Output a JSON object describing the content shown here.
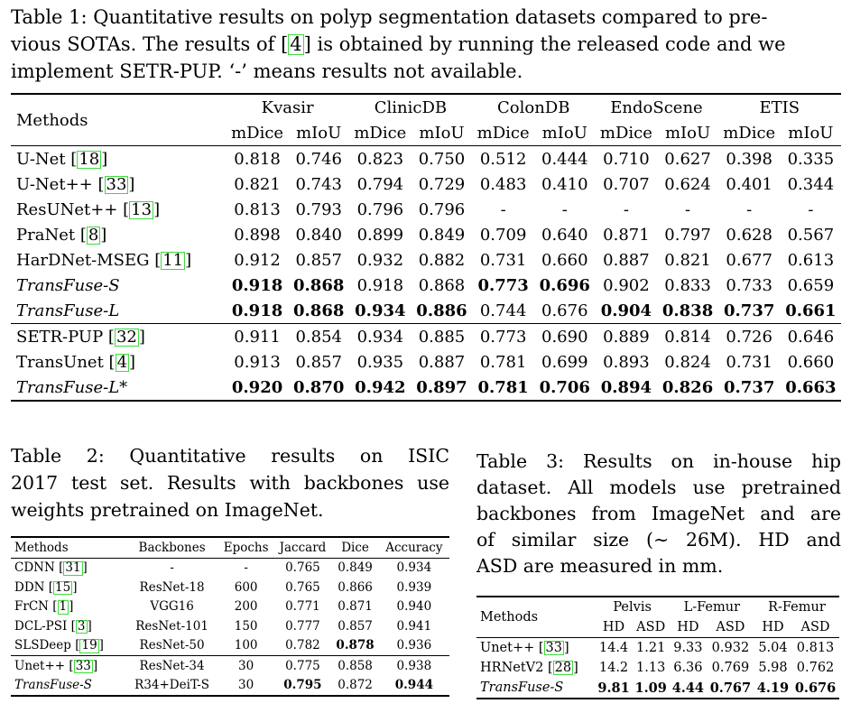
{
  "table1": {
    "caption": "Table 1:  Quantitative results on polyp segmentation datasets compared to previous SOTAs. The results of [4] is obtained by running the released code and we implement SETR-PUP. ‘-’ means results not available.",
    "caption_parts": [
      "Table 1:  Quantitative results on polyp segmentation datasets compared to pre-",
      "vious SOTAs. The results of ",
      "4",
      " is obtained by running the released code and we",
      "implement SETR-PUP. ‘-’ means results not available."
    ],
    "methods_header": "Methods",
    "datasets": [
      "Kvasir",
      "ClinicDB",
      "ColonDB",
      "EndoScene",
      "ETIS"
    ],
    "metric_a": "mDice",
    "metric_b": "mIoU",
    "rows": [
      {
        "name": "U-Net ",
        "ref": "18",
        "italic": false,
        "values": [
          "0.818",
          "0.746",
          "0.823",
          "0.750",
          "0.512",
          "0.444",
          "0.710",
          "0.627",
          "0.398",
          "0.335"
        ],
        "bold": []
      },
      {
        "name": "U-Net++ ",
        "ref": "33",
        "italic": false,
        "values": [
          "0.821",
          "0.743",
          "0.794",
          "0.729",
          "0.483",
          "0.410",
          "0.707",
          "0.624",
          "0.401",
          "0.344"
        ],
        "bold": []
      },
      {
        "name": "ResUNet++ ",
        "ref": "13",
        "italic": false,
        "values": [
          "0.813",
          "0.793",
          "0.796",
          "0.796",
          "-",
          "-",
          "-",
          "-",
          "-",
          "-"
        ],
        "bold": []
      },
      {
        "name": "PraNet ",
        "ref": "8",
        "italic": false,
        "values": [
          "0.898",
          "0.840",
          "0.899",
          "0.849",
          "0.709",
          "0.640",
          "0.871",
          "0.797",
          "0.628",
          "0.567"
        ],
        "bold": []
      },
      {
        "name": "HarDNet-MSEG ",
        "ref": "11",
        "italic": false,
        "values": [
          "0.912",
          "0.857",
          "0.932",
          "0.882",
          "0.731",
          "0.660",
          "0.887",
          "0.821",
          "0.677",
          "0.613"
        ],
        "bold": []
      },
      {
        "name": "TransFuse-S",
        "ref": "",
        "italic": true,
        "values": [
          "0.918",
          "0.868",
          "0.918",
          "0.868",
          "0.773",
          "0.696",
          "0.902",
          "0.833",
          "0.733",
          "0.659"
        ],
        "bold": [
          0,
          1,
          4,
          5
        ]
      },
      {
        "name": "TransFuse-L",
        "ref": "",
        "italic": true,
        "values": [
          "0.918",
          "0.868",
          "0.934",
          "0.886",
          "0.744",
          "0.676",
          "0.904",
          "0.838",
          "0.737",
          "0.661"
        ],
        "bold": [
          0,
          1,
          2,
          3,
          6,
          7,
          8,
          9
        ]
      },
      {
        "name": "SETR-PUP ",
        "ref": "32",
        "italic": false,
        "values": [
          "0.911",
          "0.854",
          "0.934",
          "0.885",
          "0.773",
          "0.690",
          "0.889",
          "0.814",
          "0.726",
          "0.646"
        ],
        "bold": []
      },
      {
        "name": "TransUnet ",
        "ref": "4",
        "italic": false,
        "values": [
          "0.913",
          "0.857",
          "0.935",
          "0.887",
          "0.781",
          "0.699",
          "0.893",
          "0.824",
          "0.731",
          "0.660"
        ],
        "bold": []
      },
      {
        "name": "TransFuse-L*",
        "ref": "",
        "italic": true,
        "values": [
          "0.920",
          "0.870",
          "0.942",
          "0.897",
          "0.781",
          "0.706",
          "0.894",
          "0.826",
          "0.737",
          "0.663"
        ],
        "bold": [
          0,
          1,
          2,
          3,
          4,
          5,
          6,
          7,
          8,
          9
        ]
      }
    ]
  },
  "table2": {
    "caption_lines": [
      "Table 2:  Quantitative results on ISIC",
      "2017 test set. Results with backbones use",
      "weights pretrained on ImageNet."
    ],
    "headers": [
      "Methods",
      "Backbones",
      "Epochs",
      "Jaccard",
      "Dice",
      "Accuracy"
    ],
    "rows": [
      {
        "name": "CDNN ",
        "ref": "31",
        "italic": false,
        "values": [
          "-",
          "-",
          "0.765",
          "0.849",
          "0.934"
        ],
        "bold": []
      },
      {
        "name": "DDN ",
        "ref": "15",
        "italic": false,
        "values": [
          "ResNet-18",
          "600",
          "0.765",
          "0.866",
          "0.939"
        ],
        "bold": []
      },
      {
        "name": "FrCN ",
        "ref": "1",
        "italic": false,
        "values": [
          "VGG16",
          "200",
          "0.771",
          "0.871",
          "0.940"
        ],
        "bold": []
      },
      {
        "name": "DCL-PSI ",
        "ref": "3",
        "italic": false,
        "values": [
          "ResNet-101",
          "150",
          "0.777",
          "0.857",
          "0.941"
        ],
        "bold": []
      },
      {
        "name": "SLSDeep ",
        "ref": "19",
        "italic": false,
        "values": [
          "ResNet-50",
          "100",
          "0.782",
          "0.878",
          "0.936"
        ],
        "bold": [
          3
        ]
      },
      {
        "name": "Unet++ ",
        "ref": "33",
        "italic": false,
        "values": [
          "ResNet-34",
          "30",
          "0.775",
          "0.858",
          "0.938"
        ],
        "bold": []
      },
      {
        "name": "TransFuse-S",
        "ref": "",
        "italic": true,
        "values": [
          "R34+DeiT-S",
          "30",
          "0.795",
          "0.872",
          "0.944"
        ],
        "bold": [
          2,
          4
        ]
      }
    ]
  },
  "table3": {
    "caption_lines": [
      "Table 3:  Results on in-house hip",
      "dataset. All models use pretrained",
      "backbones from ImageNet and are",
      "of similar size (∼ 26M). HD and",
      "ASD are measured in mm."
    ],
    "methods_header": "Methods",
    "groups": [
      "Pelvis",
      "L-Femur",
      "R-Femur"
    ],
    "metric_a": "HD",
    "metric_b": "ASD",
    "rows": [
      {
        "name": "Unet++ ",
        "ref": "33",
        "italic": false,
        "values": [
          "14.4",
          "1.21",
          "9.33",
          "0.932",
          "5.04",
          "0.813"
        ],
        "bold": []
      },
      {
        "name": "HRNetV2 ",
        "ref": "28",
        "italic": false,
        "values": [
          "14.2",
          "1.13",
          "6.36",
          "0.769",
          "5.98",
          "0.762"
        ],
        "bold": []
      },
      {
        "name": "TransFuse-S",
        "ref": "",
        "italic": true,
        "values": [
          "9.81",
          "1.09",
          "4.44",
          "0.767",
          "4.19",
          "0.676"
        ],
        "bold": [
          0,
          1,
          2,
          3,
          4,
          5
        ]
      }
    ]
  }
}
